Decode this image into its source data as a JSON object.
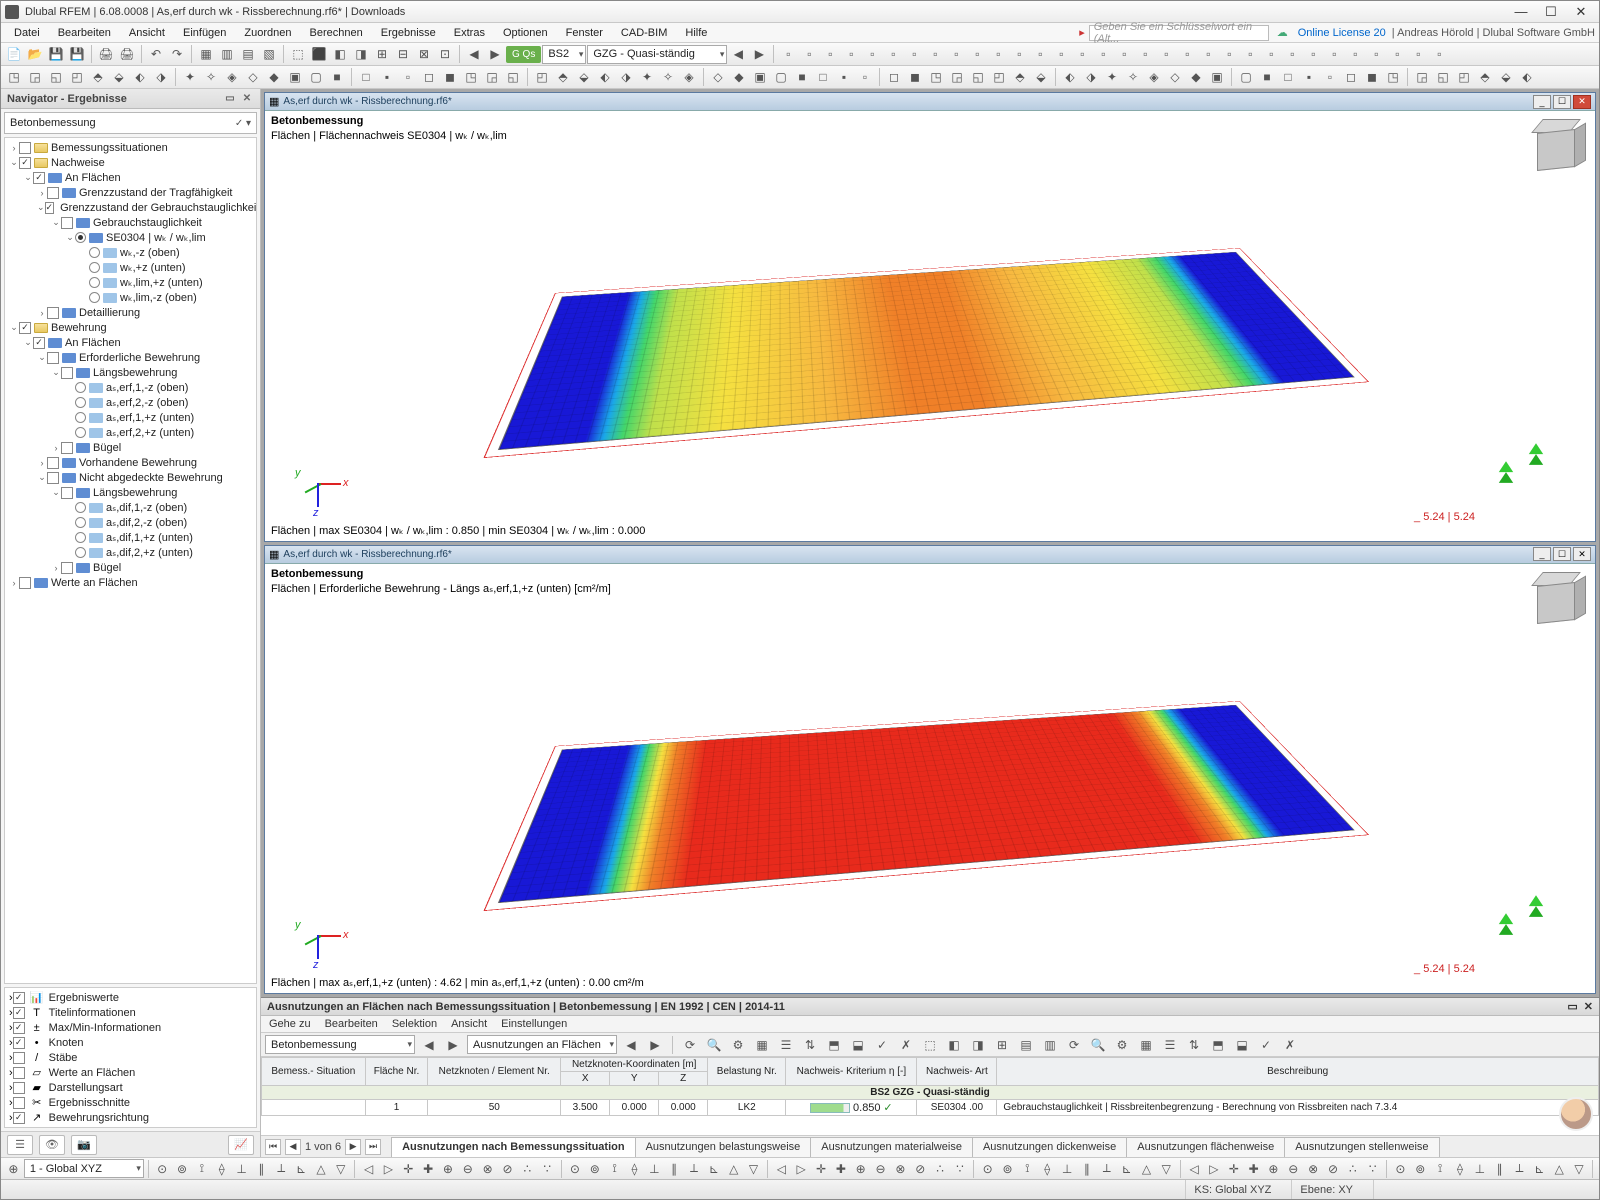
{
  "window": {
    "title": "Dlubal RFEM | 6.08.0008 | As,erf durch wk - Rissberechnung.rf6* | Downloads",
    "search_placeholder": "Geben Sie ein Schlüsselwort ein (Alt...",
    "license": "Online License 20",
    "user": "Andreas Hörold | Dlubal Software GmbH"
  },
  "menu": [
    "Datei",
    "Bearbeiten",
    "Ansicht",
    "Einfügen",
    "Zuordnen",
    "Berechnen",
    "Ergebnisse",
    "Extras",
    "Optionen",
    "Fenster",
    "CAD-BIM",
    "Hilfe"
  ],
  "toolbar_combo1": "BS2",
  "toolbar_pill": "G Qs",
  "toolbar_combo2": "GZG - Quasi-ständig",
  "navigator": {
    "title": "Navigator - Ergebnisse",
    "type": "Betonbemessung",
    "tree": [
      {
        "d": 1,
        "ar": "›",
        "cb": "",
        "ico": "fld",
        "lbl": "Bemessungssituationen"
      },
      {
        "d": 1,
        "ar": "⌄",
        "cb": "✓",
        "ico": "fld",
        "lbl": "Nachweise"
      },
      {
        "d": 2,
        "ar": "⌄",
        "cb": "✓",
        "ico": "srf",
        "lbl": "An Flächen"
      },
      {
        "d": 3,
        "ar": "›",
        "cb": "",
        "ico": "srf",
        "lbl": "Grenzzustand der Tragfähigkeit"
      },
      {
        "d": 3,
        "ar": "⌄",
        "cb": "✓",
        "ico": "srf",
        "lbl": "Grenzzustand der Gebrauchstauglichkeit"
      },
      {
        "d": 4,
        "ar": "⌄",
        "cb": "",
        "ico": "srf",
        "lbl": "Gebrauchstauglichkeit"
      },
      {
        "d": 5,
        "ar": "⌄",
        "rd": "on",
        "ico": "srf",
        "lbl": "SE0304 | wₖ / wₖ,lim"
      },
      {
        "d": 6,
        "rd": "",
        "ico": "srf2",
        "lbl": "wₖ,-z (oben)"
      },
      {
        "d": 6,
        "rd": "",
        "ico": "srf2",
        "lbl": "wₖ,+z (unten)"
      },
      {
        "d": 6,
        "rd": "",
        "ico": "srf2",
        "lbl": "wₖ,lim,+z (unten)"
      },
      {
        "d": 6,
        "rd": "",
        "ico": "srf2",
        "lbl": "wₖ,lim,-z (oben)"
      },
      {
        "d": 3,
        "ar": "›",
        "cb": "",
        "ico": "srf",
        "lbl": "Detaillierung"
      },
      {
        "d": 1,
        "ar": "⌄",
        "cb": "✓",
        "ico": "fld",
        "lbl": "Bewehrung"
      },
      {
        "d": 2,
        "ar": "⌄",
        "cb": "✓",
        "ico": "srf",
        "lbl": "An Flächen"
      },
      {
        "d": 3,
        "ar": "⌄",
        "cb": "",
        "ico": "srf",
        "lbl": "Erforderliche Bewehrung"
      },
      {
        "d": 4,
        "ar": "⌄",
        "cb": "",
        "ico": "srf",
        "lbl": "Längsbewehrung"
      },
      {
        "d": 5,
        "rd": "",
        "ico": "srf2",
        "lbl": "aₛ,erf,1,-z (oben)"
      },
      {
        "d": 5,
        "rd": "",
        "ico": "srf2",
        "lbl": "aₛ,erf,2,-z (oben)"
      },
      {
        "d": 5,
        "rd": "",
        "ico": "srf2",
        "lbl": "aₛ,erf,1,+z (unten)"
      },
      {
        "d": 5,
        "rd": "",
        "ico": "srf2",
        "lbl": "aₛ,erf,2,+z (unten)"
      },
      {
        "d": 4,
        "ar": "›",
        "cb": "",
        "ico": "srf",
        "lbl": "Bügel"
      },
      {
        "d": 3,
        "ar": "›",
        "cb": "",
        "ico": "srf",
        "lbl": "Vorhandene Bewehrung"
      },
      {
        "d": 3,
        "ar": "⌄",
        "cb": "",
        "ico": "srf",
        "lbl": "Nicht abgedeckte Bewehrung"
      },
      {
        "d": 4,
        "ar": "⌄",
        "cb": "",
        "ico": "srf",
        "lbl": "Längsbewehrung"
      },
      {
        "d": 5,
        "rd": "",
        "ico": "srf2",
        "lbl": "aₛ,dif,1,-z (oben)"
      },
      {
        "d": 5,
        "rd": "",
        "ico": "srf2",
        "lbl": "aₛ,dif,2,-z (oben)"
      },
      {
        "d": 5,
        "rd": "",
        "ico": "srf2",
        "lbl": "aₛ,dif,1,+z (unten)"
      },
      {
        "d": 5,
        "rd": "",
        "ico": "srf2",
        "lbl": "aₛ,dif,2,+z (unten)"
      },
      {
        "d": 4,
        "ar": "›",
        "cb": "",
        "ico": "srf",
        "lbl": "Bügel"
      },
      {
        "d": 1,
        "ar": "›",
        "cb": "",
        "ico": "srf",
        "lbl": "Werte an Flächen"
      }
    ],
    "opts": [
      {
        "c": "✓",
        "ico": "📊",
        "lbl": "Ergebniswerte"
      },
      {
        "c": "✓",
        "ico": "T",
        "lbl": "Titelinformationen"
      },
      {
        "c": "✓",
        "ico": "±",
        "lbl": "Max/Min-Informationen"
      },
      {
        "c": "✓",
        "ico": "•",
        "lbl": "Knoten"
      },
      {
        "c": "",
        "ico": "/",
        "lbl": "Stäbe"
      },
      {
        "c": "",
        "ico": "▱",
        "lbl": "Werte an Flächen"
      },
      {
        "c": "",
        "ico": "▰",
        "lbl": "Darstellungsart"
      },
      {
        "c": "",
        "ico": "✂",
        "lbl": "Ergebnisschnitte"
      },
      {
        "c": "✓",
        "ico": "↗",
        "lbl": "Bewehrungsrichtung"
      }
    ]
  },
  "views": {
    "file": "As,erf durch wk - Rissberechnung.rf6*",
    "v1": {
      "hdr": "Betonbemessung",
      "sub": "Flächen | Flächennachweis SE0304 | wₖ / wₖ,lim",
      "ftr": "Flächen | max SE0304 | wₖ / wₖ,lim : 0.850 | min SE0304 | wₖ / wₖ,lim : 0.000",
      "dim": "_ 5.24 | 5.24"
    },
    "v2": {
      "hdr": "Betonbemessung",
      "sub": "Flächen | Erforderliche Bewehrung - Längs aₛ,erf,1,+z (unten) [cm²/m]",
      "ftr": "Flächen | max aₛ,erf,1,+z (unten) : 4.62 | min aₛ,erf,1,+z (unten) : 0.00 cm²/m",
      "dim": "_ 5.24 | 5.24"
    }
  },
  "table": {
    "title": "Ausnutzungen an Flächen nach Bemessungssituation | Betonbemessung | EN 1992 | CEN | 2014-11",
    "menu": [
      "Gehe zu",
      "Bearbeiten",
      "Selektion",
      "Ansicht",
      "Einstellungen"
    ],
    "combo1": "Betonbemessung",
    "combo2": "Ausnutzungen an Flächen",
    "columns": [
      "Bemess.-\nSituation",
      "Fläche\nNr.",
      "Netzknoten /\nElement Nr.",
      "X",
      "Y",
      "Z",
      "Belastung\nNr.",
      "Nachweis-\nKriterium η [-]",
      "Nachweis-\nArt",
      "Beschreibung"
    ],
    "koord_header": "Netzknoten-Koordinaten [m]",
    "group": "BS2    GZG - Quasi-ständig",
    "row": {
      "fl": "1",
      "nk": "50",
      "x": "3.500",
      "y": "0.000",
      "z": "0.000",
      "bel": "LK2",
      "eta": "0.850",
      "art": "SE0304 .00",
      "besch": "Gebrauchstauglichkeit | Rissbreitenbegrenzung - Berechnung von Rissbreiten nach 7.3.4"
    },
    "pager": "1 von 6",
    "tabs": [
      "Ausnutzungen nach Bemessungssituation",
      "Ausnutzungen belastungsweise",
      "Ausnutzungen materialweise",
      "Ausnutzungen dickenweise",
      "Ausnutzungen flächenweise",
      "Ausnutzungen stellenweise"
    ]
  },
  "status": {
    "cs": "1 - Global XYZ",
    "ks": "KS: Global XYZ",
    "ebene": "Ebene: XY"
  }
}
